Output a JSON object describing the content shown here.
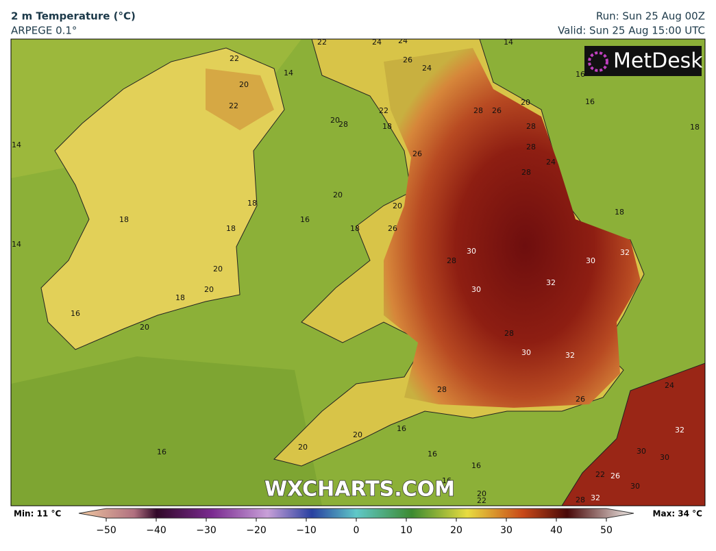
{
  "header": {
    "title": "2 m Temperature (°C)",
    "model": "ARPEGE 0.1°",
    "run": "Run: Sun 25 Aug 00Z",
    "valid": "Valid: Sun 25 Aug 15:00 UTC"
  },
  "logo": "MetDesk",
  "watermark": "WXCHARTS.COM",
  "contour_labels": [
    22,
    24,
    24,
    14,
    26,
    24,
    22,
    14,
    20,
    22,
    16,
    16,
    20,
    28,
    26,
    22,
    20,
    28,
    18,
    28,
    18,
    14,
    28,
    26,
    24,
    28,
    20,
    20,
    18,
    18,
    16,
    18,
    18,
    26,
    18,
    14,
    30,
    28,
    30,
    32,
    20,
    32,
    30,
    20,
    18,
    16,
    20,
    28,
    30,
    32,
    28,
    24,
    26,
    16,
    20,
    32,
    20,
    16,
    30,
    30,
    16,
    16,
    16,
    22,
    26,
    30,
    20,
    22,
    28,
    32
  ],
  "colorbar": {
    "min_label": "Min: 11 °C",
    "max_label": "Max: 34 °C",
    "lim": [
      -50,
      50
    ],
    "ticks": [
      {
        "value": -50,
        "label": "−50"
      },
      {
        "value": -40,
        "label": "−40"
      },
      {
        "value": -30,
        "label": "−30"
      },
      {
        "value": -20,
        "label": "−20"
      },
      {
        "value": -10,
        "label": "−10"
      },
      0,
      10,
      20,
      30,
      40,
      50
    ]
  }
}
